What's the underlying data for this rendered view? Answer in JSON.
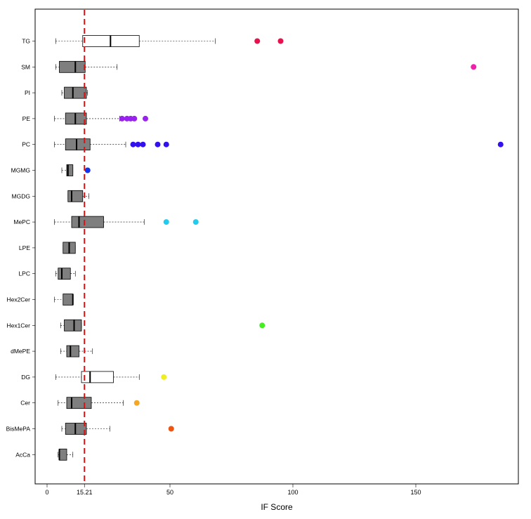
{
  "chart_data": {
    "type": "boxplot",
    "title": "",
    "xlabel": "IF Score",
    "ylabel": "",
    "xlim": [
      -4.5,
      191
    ],
    "x_ticks": [
      {
        "value": 0,
        "label": "0"
      },
      {
        "value": 15.21,
        "label": "15.21"
      },
      {
        "value": 50,
        "label": "50"
      },
      {
        "value": 100,
        "label": "100"
      },
      {
        "value": 150,
        "label": "150"
      }
    ],
    "threshold": {
      "value": 15.21,
      "color": "#dd1111",
      "style": "dashed"
    },
    "grid": false,
    "legend": "none",
    "categories": [
      "TG",
      "SM",
      "PI",
      "PE",
      "PC",
      "MGMG",
      "MGDG",
      "MePC",
      "LPE",
      "LPC",
      "Hex2Cer",
      "Hex1Cer",
      "dMePE",
      "DG",
      "Cer",
      "BisMePA",
      "AcCa"
    ],
    "boxes": [
      {
        "category": "TG",
        "whisker_low": 3.5,
        "q1": 14.5,
        "median": 25.8,
        "q3": 37.5,
        "whisker_high": 68.5,
        "fill": "#ffffff",
        "outliers": [
          85.5,
          95
        ],
        "outlier_color": "#e8114e"
      },
      {
        "category": "SM",
        "whisker_low": 3.5,
        "q1": 5,
        "median": 11.5,
        "q3": 15.5,
        "whisker_high": 28.5,
        "fill": "#7f7f7f",
        "outliers": [
          173.5
        ],
        "outlier_color": "#ee22aa"
      },
      {
        "category": "PI",
        "whisker_low": 6,
        "q1": 7,
        "median": 10.5,
        "q3": 16,
        "whisker_high": 16.5,
        "fill": "#7f7f7f",
        "outliers": [],
        "outlier_color": "#000000"
      },
      {
        "category": "PE",
        "whisker_low": 3,
        "q1": 7.5,
        "median": 11.5,
        "q3": 16,
        "whisker_high": 29.5,
        "fill": "#7f7f7f",
        "outliers": [
          30.5,
          32.5,
          34,
          35.5,
          40
        ],
        "outlier_color": "#9922ee"
      },
      {
        "category": "PC",
        "whisker_low": 3,
        "q1": 7.5,
        "median": 12,
        "q3": 17.5,
        "whisker_high": 32,
        "fill": "#7f7f7f",
        "outliers": [
          35,
          37,
          39,
          45,
          48.5,
          184.5
        ],
        "outlier_color": "#3311ee"
      },
      {
        "category": "MGMG",
        "whisker_low": 6,
        "q1": 8,
        "median": 8.5,
        "q3": 10.5,
        "whisker_high": 10.5,
        "fill": "#7f7f7f",
        "outliers": [
          16.5
        ],
        "outlier_color": "#1133ee"
      },
      {
        "category": "MGDG",
        "whisker_low": 8.5,
        "q1": 8.5,
        "median": 10,
        "q3": 14.5,
        "whisker_high": 17,
        "fill": "#7f7f7f",
        "outliers": [],
        "outlier_color": "#000000"
      },
      {
        "category": "MePC",
        "whisker_low": 3,
        "q1": 10,
        "median": 13,
        "q3": 23,
        "whisker_high": 39.5,
        "fill": "#7f7f7f",
        "outliers": [
          48.5,
          60.5
        ],
        "outlier_color": "#22ccee"
      },
      {
        "category": "LPE",
        "whisker_low": 6.5,
        "q1": 6.5,
        "median": 9,
        "q3": 11.5,
        "whisker_high": 11.5,
        "fill": "#7f7f7f",
        "outliers": [],
        "outlier_color": "#000000"
      },
      {
        "category": "LPC",
        "whisker_low": 3.5,
        "q1": 4.5,
        "median": 6,
        "q3": 9.5,
        "whisker_high": 11.5,
        "fill": "#7f7f7f",
        "outliers": [],
        "outlier_color": "#000000"
      },
      {
        "category": "Hex2Cer",
        "whisker_low": 3,
        "q1": 6.5,
        "median": 10.5,
        "q3": 10.5,
        "whisker_high": 10.5,
        "fill": "#7f7f7f",
        "outliers": [],
        "outlier_color": "#000000"
      },
      {
        "category": "Hex1Cer",
        "whisker_low": 5.5,
        "q1": 7,
        "median": 11,
        "q3": 14,
        "whisker_high": 14,
        "fill": "#7f7f7f",
        "outliers": [
          87.5
        ],
        "outlier_color": "#44ee22"
      },
      {
        "category": "dMePE",
        "whisker_low": 5.5,
        "q1": 8,
        "median": 9.5,
        "q3": 13,
        "whisker_high": 18.5,
        "fill": "#7f7f7f",
        "outliers": [],
        "outlier_color": "#000000"
      },
      {
        "category": "DG",
        "whisker_low": 3.5,
        "q1": 14,
        "median": 17.5,
        "q3": 27,
        "whisker_high": 37.5,
        "fill": "#ffffff",
        "outliers": [
          47.5
        ],
        "outlier_color": "#eeee22"
      },
      {
        "category": "Cer",
        "whisker_low": 4.5,
        "q1": 8,
        "median": 10,
        "q3": 18,
        "whisker_high": 31,
        "fill": "#7f7f7f",
        "outliers": [
          36.5
        ],
        "outlier_color": "#f5a623"
      },
      {
        "category": "BisMePA",
        "whisker_low": 6,
        "q1": 7.5,
        "median": 11.5,
        "q3": 16,
        "whisker_high": 25.5,
        "fill": "#7f7f7f",
        "outliers": [
          50.5
        ],
        "outlier_color": "#ee5511"
      },
      {
        "category": "AcCa",
        "whisker_low": 4.5,
        "q1": 5,
        "median": 5,
        "q3": 8,
        "whisker_high": 10.5,
        "fill": "#7f7f7f",
        "outliers": [],
        "outlier_color": "#000000"
      }
    ]
  }
}
